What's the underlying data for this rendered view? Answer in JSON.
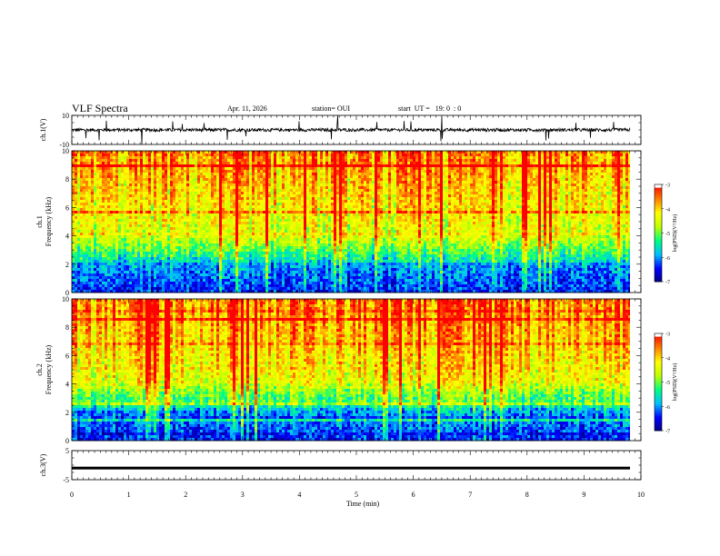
{
  "header": {
    "title": "VLF Spectra",
    "date": "Apr. 11, 2026",
    "station": "station= OUI",
    "start": "start  UT =   19: 0  : 0"
  },
  "colors": {
    "colorbar_stops": [
      "#000080",
      "#0000ff",
      "#00c0ff",
      "#00ff80",
      "#c0ff00",
      "#ffff00",
      "#ff8000",
      "#ff0000",
      "#ffffff"
    ],
    "trace": "#000000"
  },
  "chart_data": [
    {
      "type": "line",
      "panel": "waveform-ch1",
      "ylabel": "ch.1(V)",
      "ylim": [
        -10,
        10
      ],
      "yticks": [
        "10",
        "-10"
      ],
      "baseline": 0,
      "xlim": [
        0,
        10
      ]
    },
    {
      "type": "heatmap",
      "panel": "spectrogram-ch1",
      "ylabel_channel": "ch.1",
      "ylabel": "Frequency (kHz)",
      "ylim": [
        0,
        10
      ],
      "yticks": [
        "0",
        "2",
        "4",
        "6",
        "8",
        "10"
      ],
      "xlim": [
        0,
        10
      ],
      "zlabel": "log(PSD)(V²/Hz)",
      "zlim": [
        -7,
        -3
      ],
      "zticks": [
        "-3",
        "-4",
        "-5",
        "-6",
        "-7"
      ]
    },
    {
      "type": "heatmap",
      "panel": "spectrogram-ch2",
      "ylabel_channel": "ch.2",
      "ylabel": "Frequency (kHz)",
      "ylim": [
        0,
        10
      ],
      "yticks": [
        "0",
        "2",
        "4",
        "6",
        "8",
        "10"
      ],
      "xlim": [
        0,
        10
      ],
      "zlabel": "log(PSD)(V²/Hz)",
      "zlim": [
        -7,
        -3
      ],
      "zticks": [
        "-3",
        "-4",
        "-5",
        "-6",
        "-7"
      ]
    },
    {
      "type": "line",
      "panel": "waveform-ch3",
      "ylabel": "ch.3(V)",
      "ylim": [
        -5,
        5
      ],
      "yticks": [
        "5",
        "-5"
      ],
      "baseline": -1.0,
      "xlim": [
        0,
        10
      ]
    }
  ],
  "xaxis": {
    "label": "Time (min)",
    "ticks": [
      "0",
      "1",
      "2",
      "3",
      "4",
      "5",
      "6",
      "7",
      "8",
      "9",
      "10"
    ]
  }
}
